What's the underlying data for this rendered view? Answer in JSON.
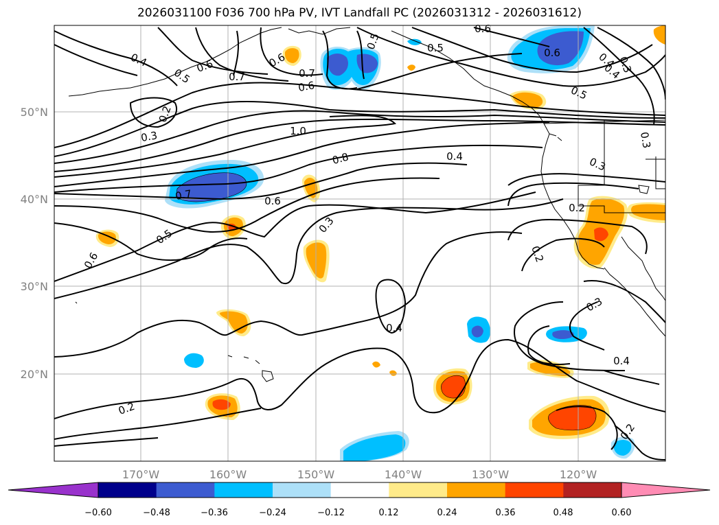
{
  "title": "2026031100 F036 700 hPa PV, IVT Landfall PC (2026031312 - 2026031612)",
  "map": {
    "lat_labels": [
      "50°N",
      "40°N",
      "30°N",
      "20°N"
    ],
    "lon_labels": [
      "170°W",
      "160°W",
      "150°W",
      "140°W",
      "130°W",
      "120°W"
    ],
    "contour_labels": [
      "0.6",
      "0.7",
      "0.5",
      "0.6",
      "0.4",
      "0.5",
      "0.6",
      "0.6",
      "0.7",
      "0.6",
      "0.5",
      "0.4",
      "0.3",
      "0.4",
      "0.5",
      "0.2",
      "0.3",
      "1.0",
      "0.8",
      "0.4",
      "0.3",
      "0.3",
      "0.7",
      "0.6",
      "0.2",
      "0.5",
      "0.3",
      "0.2",
      "0.6",
      "0.3",
      "0.4",
      "0.4",
      "0.2",
      "0.2"
    ]
  },
  "colorbar": {
    "levels": [
      "−0.60",
      "−0.48",
      "−0.36",
      "−0.24",
      "−0.12",
      "0.12",
      "0.24",
      "0.36",
      "0.48",
      "0.60"
    ],
    "colors": [
      "#9932cc",
      "#00008b",
      "#3c5bd0",
      "#00bfff",
      "#ade0f8",
      "#ffffff",
      "#ffeb8a",
      "#ffa500",
      "#ff4500",
      "#b22222",
      "#ff8cb4"
    ]
  }
}
